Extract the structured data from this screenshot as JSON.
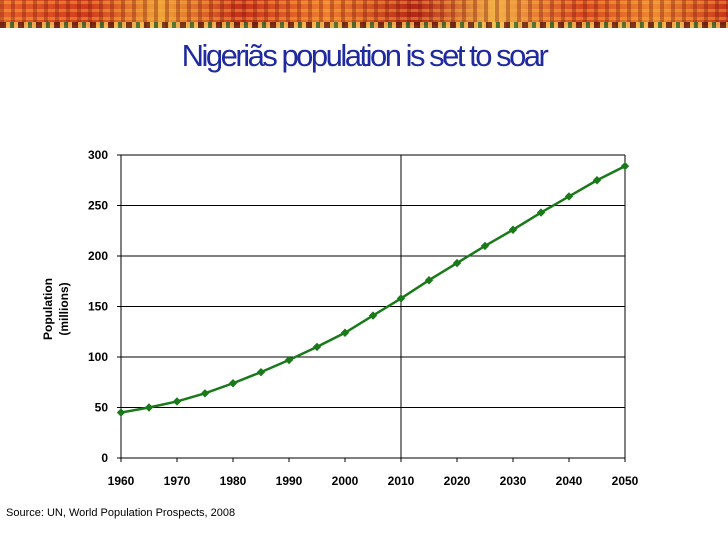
{
  "slide": {
    "title": "Nigeriãs population is set to soar",
    "source": "Source: UN, World Population Prospects, 2008"
  },
  "chart_data": {
    "type": "line",
    "title": "Nigeriãs population is set to soar",
    "xlabel": "",
    "ylabel": "Population (millions)",
    "ylabel_lines": [
      "Population",
      "(millions)"
    ],
    "xlim": [
      1960,
      2050
    ],
    "ylim": [
      0,
      300
    ],
    "x_ticks": [
      1960,
      1970,
      1980,
      1990,
      2000,
      2010,
      2020,
      2030,
      2040,
      2050
    ],
    "y_ticks": [
      0,
      50,
      100,
      150,
      200,
      250,
      300
    ],
    "grid": {
      "horizontal": true,
      "vertical_at": [
        2010
      ]
    },
    "legend": "none",
    "series": [
      {
        "color": "#1a7a1a",
        "marker": "diamond",
        "x": [
          1960,
          1965,
          1970,
          1975,
          1980,
          1985,
          1990,
          1995,
          2000,
          2005,
          2010,
          2015,
          2020,
          2025,
          2030,
          2035,
          2040,
          2045,
          2050
        ],
        "y": [
          45,
          50,
          56,
          64,
          74,
          85,
          97,
          110,
          124,
          141,
          158,
          176,
          193,
          210,
          226,
          243,
          259,
          275,
          289
        ]
      }
    ]
  },
  "colors": {
    "title": "#1f2a9e",
    "series": "#1a7a1a",
    "grid": "#000000"
  }
}
